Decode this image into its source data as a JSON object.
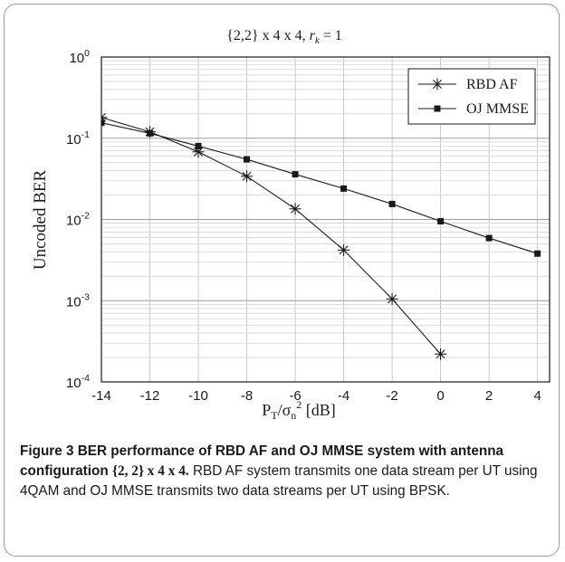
{
  "chart_data": {
    "type": "line",
    "title_parts": {
      "set": "{2,2}",
      "rest": " x 4 x 4, ",
      "r": "r",
      "sub": "k",
      "eq": " = 1"
    },
    "xlabel_parts": {
      "P": "P",
      "Psub": "T",
      "slash": "/",
      "sigma": "σ",
      "sigsub": "n",
      "sup": "2",
      "unit": " [dB]"
    },
    "ylabel": "Uncoded BER",
    "x_scale": "linear",
    "y_scale": "log",
    "xlim": [
      -14,
      4.5
    ],
    "ylim": [
      0.0001,
      1
    ],
    "x_ticks": [
      -14,
      -12,
      -10,
      -8,
      -6,
      -4,
      -2,
      0,
      2,
      4
    ],
    "x_tick_labels": [
      "-14",
      "-12",
      "-10",
      "-8",
      "-6",
      "-4",
      "-2",
      "0",
      "2",
      "4"
    ],
    "y_tick_labels": [
      {
        "base": "10",
        "exp": "0"
      },
      {
        "base": "10",
        "exp": "-1"
      },
      {
        "base": "10",
        "exp": "-2"
      },
      {
        "base": "10",
        "exp": "-3"
      },
      {
        "base": "10",
        "exp": "-4"
      }
    ],
    "grid": true,
    "legend_position": "top-right",
    "series": [
      {
        "name": "RBD AF",
        "marker": "asterisk",
        "color": "#1a1a1a",
        "x": [
          -14,
          -12,
          -10,
          -8,
          -6,
          -4,
          -2,
          0
        ],
        "y": [
          0.18,
          0.12,
          0.068,
          0.034,
          0.0135,
          0.0042,
          0.00105,
          0.00022
        ]
      },
      {
        "name": "OJ MMSE",
        "marker": "square",
        "color": "#1a1a1a",
        "x": [
          -14,
          -12,
          -10,
          -8,
          -6,
          -4,
          -2,
          0,
          2,
          4
        ],
        "y": [
          0.155,
          0.115,
          0.08,
          0.055,
          0.036,
          0.024,
          0.0155,
          0.0095,
          0.0059,
          0.0038
        ]
      }
    ]
  },
  "caption": {
    "label": "Figure 3",
    "title_text": " BER performance of RBD AF and OJ MMSE system with antenna configuration ",
    "title_math": "{2, 2} x 4 x 4.",
    "body": " RBD AF system transmits one data stream per UT using 4QAM and OJ MMSE transmits two data streams per UT using BPSK."
  }
}
